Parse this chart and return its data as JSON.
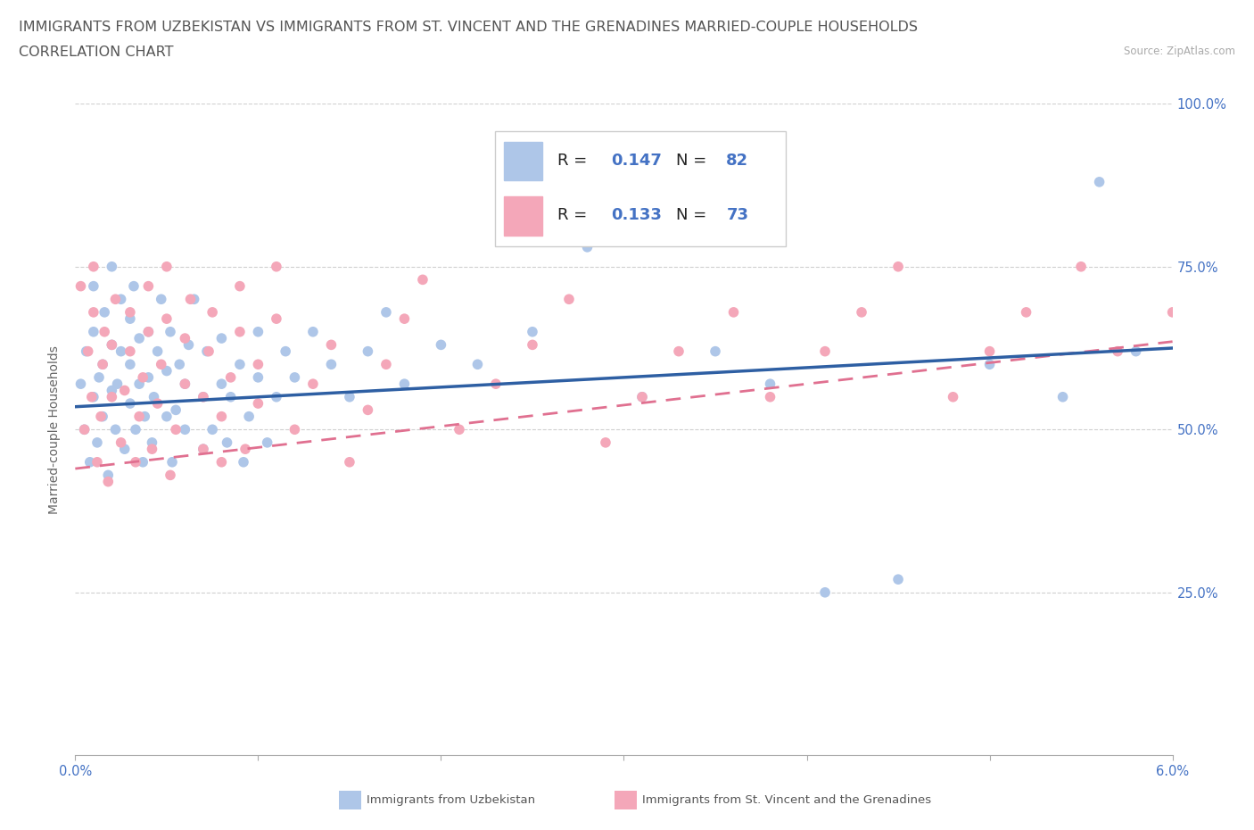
{
  "title_line1": "IMMIGRANTS FROM UZBEKISTAN VS IMMIGRANTS FROM ST. VINCENT AND THE GRENADINES MARRIED-COUPLE HOUSEHOLDS",
  "title_line2": "CORRELATION CHART",
  "source_text": "Source: ZipAtlas.com",
  "ylabel": "Married-couple Households",
  "xlim": [
    0.0,
    0.06
  ],
  "ylim": [
    0.0,
    1.0
  ],
  "uzbekistan_color": "#aec6e8",
  "stvincent_color": "#f4a7b9",
  "uzbekistan_line_color": "#2e5fa3",
  "stvincent_line_color": "#e07090",
  "R_uzbekistan": 0.147,
  "N_uzbekistan": 82,
  "R_stvincent": 0.133,
  "N_stvincent": 73,
  "uzbekistan_x": [
    0.0003,
    0.0005,
    0.0006,
    0.0008,
    0.001,
    0.001,
    0.001,
    0.0012,
    0.0013,
    0.0015,
    0.0015,
    0.0016,
    0.0018,
    0.002,
    0.002,
    0.002,
    0.0022,
    0.0023,
    0.0025,
    0.0025,
    0.0027,
    0.003,
    0.003,
    0.003,
    0.0032,
    0.0033,
    0.0035,
    0.0035,
    0.0037,
    0.0038,
    0.004,
    0.004,
    0.0042,
    0.0043,
    0.0045,
    0.0047,
    0.005,
    0.005,
    0.0052,
    0.0053,
    0.0055,
    0.0057,
    0.006,
    0.006,
    0.0062,
    0.0065,
    0.007,
    0.007,
    0.0072,
    0.0075,
    0.008,
    0.008,
    0.0083,
    0.0085,
    0.009,
    0.0092,
    0.0095,
    0.01,
    0.01,
    0.0105,
    0.011,
    0.0115,
    0.012,
    0.013,
    0.014,
    0.015,
    0.016,
    0.017,
    0.018,
    0.02,
    0.022,
    0.025,
    0.028,
    0.031,
    0.035,
    0.038,
    0.041,
    0.045,
    0.05,
    0.054,
    0.056,
    0.058
  ],
  "uzbekistan_y": [
    0.57,
    0.5,
    0.62,
    0.45,
    0.55,
    0.65,
    0.72,
    0.48,
    0.58,
    0.52,
    0.6,
    0.68,
    0.43,
    0.56,
    0.63,
    0.75,
    0.5,
    0.57,
    0.62,
    0.7,
    0.47,
    0.54,
    0.6,
    0.67,
    0.72,
    0.5,
    0.57,
    0.64,
    0.45,
    0.52,
    0.58,
    0.65,
    0.48,
    0.55,
    0.62,
    0.7,
    0.52,
    0.59,
    0.65,
    0.45,
    0.53,
    0.6,
    0.5,
    0.57,
    0.63,
    0.7,
    0.47,
    0.55,
    0.62,
    0.5,
    0.57,
    0.64,
    0.48,
    0.55,
    0.6,
    0.45,
    0.52,
    0.58,
    0.65,
    0.48,
    0.55,
    0.62,
    0.58,
    0.65,
    0.6,
    0.55,
    0.62,
    0.68,
    0.57,
    0.63,
    0.6,
    0.65,
    0.78,
    0.55,
    0.62,
    0.57,
    0.25,
    0.27,
    0.6,
    0.55,
    0.88,
    0.62
  ],
  "stvincent_x": [
    0.0003,
    0.0005,
    0.0007,
    0.0009,
    0.001,
    0.001,
    0.0012,
    0.0014,
    0.0015,
    0.0016,
    0.0018,
    0.002,
    0.002,
    0.0022,
    0.0025,
    0.0027,
    0.003,
    0.003,
    0.0033,
    0.0035,
    0.0037,
    0.004,
    0.004,
    0.0042,
    0.0045,
    0.0047,
    0.005,
    0.005,
    0.0052,
    0.0055,
    0.006,
    0.006,
    0.0063,
    0.007,
    0.007,
    0.0073,
    0.0075,
    0.008,
    0.008,
    0.0085,
    0.009,
    0.009,
    0.0093,
    0.01,
    0.01,
    0.011,
    0.011,
    0.012,
    0.013,
    0.014,
    0.015,
    0.016,
    0.017,
    0.018,
    0.019,
    0.021,
    0.023,
    0.025,
    0.027,
    0.029,
    0.031,
    0.033,
    0.036,
    0.038,
    0.041,
    0.043,
    0.045,
    0.048,
    0.05,
    0.052,
    0.055,
    0.057,
    0.06
  ],
  "stvincent_y": [
    0.72,
    0.5,
    0.62,
    0.55,
    0.68,
    0.75,
    0.45,
    0.52,
    0.6,
    0.65,
    0.42,
    0.55,
    0.63,
    0.7,
    0.48,
    0.56,
    0.62,
    0.68,
    0.45,
    0.52,
    0.58,
    0.65,
    0.72,
    0.47,
    0.54,
    0.6,
    0.67,
    0.75,
    0.43,
    0.5,
    0.57,
    0.64,
    0.7,
    0.47,
    0.55,
    0.62,
    0.68,
    0.45,
    0.52,
    0.58,
    0.65,
    0.72,
    0.47,
    0.54,
    0.6,
    0.67,
    0.75,
    0.5,
    0.57,
    0.63,
    0.45,
    0.53,
    0.6,
    0.67,
    0.73,
    0.5,
    0.57,
    0.63,
    0.7,
    0.48,
    0.55,
    0.62,
    0.68,
    0.55,
    0.62,
    0.68,
    0.75,
    0.55,
    0.62,
    0.68,
    0.75,
    0.62,
    0.68
  ],
  "uzb_line_x": [
    0.0,
    0.06
  ],
  "uzb_line_y": [
    0.535,
    0.625
  ],
  "stv_line_x": [
    0.0,
    0.06
  ],
  "stv_line_y": [
    0.44,
    0.635
  ],
  "background_color": "#ffffff",
  "grid_color": "#d0d0d0",
  "title_fontsize": 11.5,
  "axis_fontsize": 10,
  "tick_fontsize": 10.5
}
